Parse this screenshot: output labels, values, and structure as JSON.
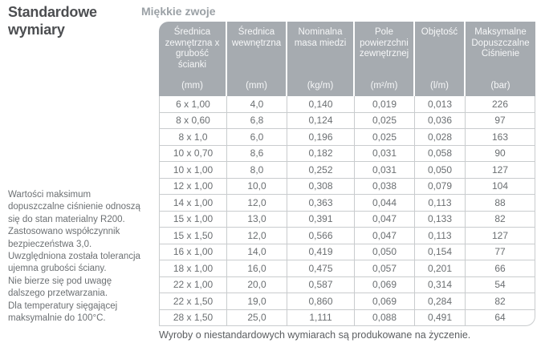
{
  "sidebar": {
    "title": "Standardowe wymiary",
    "note": "Wartości maksimum\ndopuszczalne ciśnienie odnoszą\nsię do stan materialny R200.\nZastosowano współczynnik\nbezpieczeństwa 3,0.\nUwzględniona została tolerancja\nujemna grubości ściany.\nNie bierze się pod uwagę\ndalszego przetwarzania.\nDla temperatury sięgającej\nmaksymalnie do 100°C."
  },
  "main": {
    "table_title": "Miękkie zwoje",
    "footer_note": "Wyroby o niestandardowych wymiarach są produkowane na życzenie."
  },
  "table": {
    "columns": [
      {
        "label": "Średnica zewnętrzna x grubość ścianki",
        "unit": "(mm)"
      },
      {
        "label": "Średnica wewnętrzna",
        "unit": "(mm)"
      },
      {
        "label": "Nominalna masa miedzi",
        "unit": "(kg/m)"
      },
      {
        "label": "Pole powierzchni zewnętrznej",
        "unit": "(m²/m)"
      },
      {
        "label": "Objętość",
        "unit": "(l/m)"
      },
      {
        "label": "Maksymalne Dopuszczalne Ciśnienie",
        "unit": "(bar)"
      }
    ],
    "rows": [
      [
        "6 x 1,00",
        "4,0",
        "0,140",
        "0,019",
        "0,013",
        "226"
      ],
      [
        "8 x 0,60",
        "6,8",
        "0,124",
        "0,025",
        "0,036",
        "97"
      ],
      [
        "8 x 1,0",
        "6,0",
        "0,196",
        "0,025",
        "0,028",
        "163"
      ],
      [
        "10 x 0,70",
        "8,6",
        "0,182",
        "0,031",
        "0,058",
        "90"
      ],
      [
        "10 x 1,00",
        "8,0",
        "0,252",
        "0,031",
        "0,050",
        "127"
      ],
      [
        "12 x 1,00",
        "10,0",
        "0,308",
        "0,038",
        "0,079",
        "104"
      ],
      [
        "14 x 1,00",
        "12,0",
        "0,363",
        "0,044",
        "0,113",
        "88"
      ],
      [
        "15 x 1,00",
        "13,0",
        "0,391",
        "0,047",
        "0,133",
        "82"
      ],
      [
        "15 x 1,50",
        "12,0",
        "0,566",
        "0,047",
        "0,113",
        "127"
      ],
      [
        "16 x 1,00",
        "14,0",
        "0,419",
        "0,050",
        "0,154",
        "77"
      ],
      [
        "18 x 1,00",
        "16,0",
        "0,475",
        "0,057",
        "0,201",
        "66"
      ],
      [
        "22 x 1,00",
        "20,0",
        "0,587",
        "0,069",
        "0,314",
        "54"
      ],
      [
        "22 x 1,50",
        "19,0",
        "0,860",
        "0,069",
        "0,284",
        "82"
      ],
      [
        "28 x 1,50",
        "25,0",
        "1,111",
        "0,088",
        "0,491",
        "64"
      ]
    ]
  },
  "colors": {
    "header_bg": "#a6abb0",
    "header_text": "#f6f7f8",
    "body_text": "#6b6f72",
    "sidebar_title_text": "#4c4e51",
    "table_title_text": "#9ba1a6",
    "border": "#c9ccce",
    "footer_text": "#5b5e61"
  }
}
